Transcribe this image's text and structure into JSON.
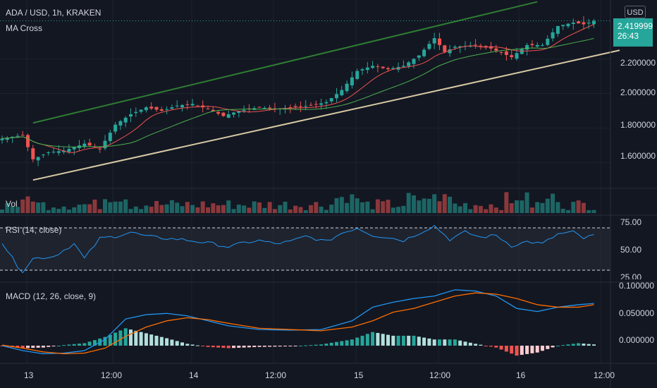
{
  "header": {
    "symbol": "ADA / USD, 1h, KRAKEN",
    "indicator": "MA Cross"
  },
  "price_axis": {
    "currency": "USD",
    "ticks": [
      "2.200000",
      "2.000000",
      "1.800000",
      "1.600000"
    ],
    "last_price": "2.419999",
    "countdown": "26:43"
  },
  "panes": {
    "volume_label": "Vol",
    "rsi_label": "RSI (14, close)",
    "rsi_ticks": [
      "75.00",
      "50.00",
      "25.00"
    ],
    "macd_label": "MACD (12, 26, close, 9)",
    "macd_ticks": [
      "0.100000",
      "0.050000",
      "0.000000"
    ]
  },
  "time_axis": [
    "13",
    "12:00",
    "14",
    "12:00",
    "15",
    "12:00",
    "16",
    "12:00"
  ],
  "colors": {
    "background": "#131722",
    "up": "#26a69a",
    "down": "#ef5350",
    "ma_fast": "#ef5350",
    "ma_slow": "#4caf50",
    "trend_upper": "#2e7d32",
    "trend_lower": "#d7c9a4",
    "rsi_line": "#2196f3",
    "macd_line": "#2196f3",
    "signal_line": "#ff6d00",
    "hist_up": "#26a69a",
    "hist_up_weak": "#b2dfdb",
    "hist_down": "#ef5350",
    "hist_down_weak": "#ffcdd2"
  },
  "chart_data": {
    "type": "candlestick",
    "instrument": "ADA / USD",
    "timeframe": "1h",
    "exchange": "KRAKEN",
    "price_range": [
      1.46,
      2.52
    ],
    "price_keypoints": [
      {
        "i": 0,
        "c": 1.74
      },
      {
        "i": 4,
        "c": 1.76
      },
      {
        "i": 6,
        "c": 1.62
      },
      {
        "i": 9,
        "c": 1.66
      },
      {
        "i": 12,
        "c": 1.67
      },
      {
        "i": 16,
        "c": 1.71
      },
      {
        "i": 19,
        "c": 1.68
      },
      {
        "i": 22,
        "c": 1.82
      },
      {
        "i": 25,
        "c": 1.88
      },
      {
        "i": 28,
        "c": 1.92
      },
      {
        "i": 31,
        "c": 1.9
      },
      {
        "i": 34,
        "c": 1.93
      },
      {
        "i": 37,
        "c": 1.94
      },
      {
        "i": 40,
        "c": 1.91
      },
      {
        "i": 43,
        "c": 1.87
      },
      {
        "i": 46,
        "c": 1.9
      },
      {
        "i": 50,
        "c": 1.92
      },
      {
        "i": 53,
        "c": 1.91
      },
      {
        "i": 56,
        "c": 1.92
      },
      {
        "i": 60,
        "c": 1.93
      },
      {
        "i": 63,
        "c": 1.95
      },
      {
        "i": 66,
        "c": 2.02
      },
      {
        "i": 69,
        "c": 2.13
      },
      {
        "i": 72,
        "c": 2.16
      },
      {
        "i": 75,
        "c": 2.14
      },
      {
        "i": 78,
        "c": 2.16
      },
      {
        "i": 81,
        "c": 2.22
      },
      {
        "i": 84,
        "c": 2.32
      },
      {
        "i": 86,
        "c": 2.24
      },
      {
        "i": 88,
        "c": 2.27
      },
      {
        "i": 92,
        "c": 2.28
      },
      {
        "i": 95,
        "c": 2.26
      },
      {
        "i": 99,
        "c": 2.21
      },
      {
        "i": 102,
        "c": 2.28
      },
      {
        "i": 105,
        "c": 2.28
      },
      {
        "i": 108,
        "c": 2.39
      },
      {
        "i": 111,
        "c": 2.41
      },
      {
        "i": 113,
        "c": 2.4
      },
      {
        "i": 115,
        "c": 2.42
      }
    ],
    "trendlines": {
      "upper": {
        "from": {
          "i": 6,
          "price": 1.83
        },
        "to": {
          "i": 104,
          "price": 2.53
        }
      },
      "lower": {
        "from": {
          "i": 6,
          "price": 1.5
        },
        "to": {
          "i": 120,
          "price": 2.25
        }
      }
    },
    "rsi_range": [
      20,
      80
    ],
    "rsi_levels": [
      70,
      30
    ],
    "rsi_keypoints": [
      {
        "i": 0,
        "v": 56
      },
      {
        "i": 3,
        "v": 34
      },
      {
        "i": 4,
        "v": 29
      },
      {
        "i": 6,
        "v": 41
      },
      {
        "i": 10,
        "v": 43
      },
      {
        "i": 14,
        "v": 55
      },
      {
        "i": 16,
        "v": 41
      },
      {
        "i": 19,
        "v": 60
      },
      {
        "i": 22,
        "v": 62
      },
      {
        "i": 25,
        "v": 66
      },
      {
        "i": 28,
        "v": 62
      },
      {
        "i": 32,
        "v": 60
      },
      {
        "i": 35,
        "v": 59
      },
      {
        "i": 38,
        "v": 57
      },
      {
        "i": 41,
        "v": 55
      },
      {
        "i": 44,
        "v": 52
      },
      {
        "i": 47,
        "v": 56
      },
      {
        "i": 50,
        "v": 58
      },
      {
        "i": 53,
        "v": 55
      },
      {
        "i": 56,
        "v": 57
      },
      {
        "i": 59,
        "v": 62
      },
      {
        "i": 63,
        "v": 57
      },
      {
        "i": 66,
        "v": 65
      },
      {
        "i": 69,
        "v": 70
      },
      {
        "i": 72,
        "v": 63
      },
      {
        "i": 75,
        "v": 61
      },
      {
        "i": 78,
        "v": 58
      },
      {
        "i": 81,
        "v": 65
      },
      {
        "i": 84,
        "v": 72
      },
      {
        "i": 87,
        "v": 59
      },
      {
        "i": 90,
        "v": 66
      },
      {
        "i": 93,
        "v": 61
      },
      {
        "i": 96,
        "v": 63
      },
      {
        "i": 99,
        "v": 53
      },
      {
        "i": 102,
        "v": 57
      },
      {
        "i": 105,
        "v": 55
      },
      {
        "i": 108,
        "v": 64
      },
      {
        "i": 111,
        "v": 66
      },
      {
        "i": 113,
        "v": 60
      },
      {
        "i": 115,
        "v": 63
      }
    ],
    "macd_range": [
      -0.025,
      0.1
    ],
    "macd_keypoints": [
      {
        "i": 0,
        "m": 0.0,
        "s": 0.001
      },
      {
        "i": 4,
        "m": -0.008,
        "s": -0.004
      },
      {
        "i": 8,
        "m": -0.013,
        "s": -0.01
      },
      {
        "i": 12,
        "m": -0.012,
        "s": -0.013
      },
      {
        "i": 16,
        "m": -0.008,
        "s": -0.012
      },
      {
        "i": 20,
        "m": 0.01,
        "s": -0.004
      },
      {
        "i": 24,
        "m": 0.043,
        "s": 0.015
      },
      {
        "i": 28,
        "m": 0.05,
        "s": 0.03
      },
      {
        "i": 32,
        "m": 0.052,
        "s": 0.04
      },
      {
        "i": 36,
        "m": 0.048,
        "s": 0.045
      },
      {
        "i": 40,
        "m": 0.04,
        "s": 0.042
      },
      {
        "i": 44,
        "m": 0.032,
        "s": 0.036
      },
      {
        "i": 50,
        "m": 0.026,
        "s": 0.028
      },
      {
        "i": 56,
        "m": 0.025,
        "s": 0.026
      },
      {
        "i": 62,
        "m": 0.026,
        "s": 0.024
      },
      {
        "i": 68,
        "m": 0.04,
        "s": 0.03
      },
      {
        "i": 72,
        "m": 0.062,
        "s": 0.04
      },
      {
        "i": 76,
        "m": 0.07,
        "s": 0.054
      },
      {
        "i": 80,
        "m": 0.076,
        "s": 0.06
      },
      {
        "i": 84,
        "m": 0.08,
        "s": 0.07
      },
      {
        "i": 88,
        "m": 0.09,
        "s": 0.08
      },
      {
        "i": 92,
        "m": 0.088,
        "s": 0.085
      },
      {
        "i": 96,
        "m": 0.08,
        "s": 0.083
      },
      {
        "i": 100,
        "m": 0.06,
        "s": 0.076
      },
      {
        "i": 104,
        "m": 0.055,
        "s": 0.066
      },
      {
        "i": 108,
        "m": 0.062,
        "s": 0.062
      },
      {
        "i": 112,
        "m": 0.066,
        "s": 0.062
      },
      {
        "i": 115,
        "m": 0.068,
        "s": 0.066
      }
    ]
  }
}
